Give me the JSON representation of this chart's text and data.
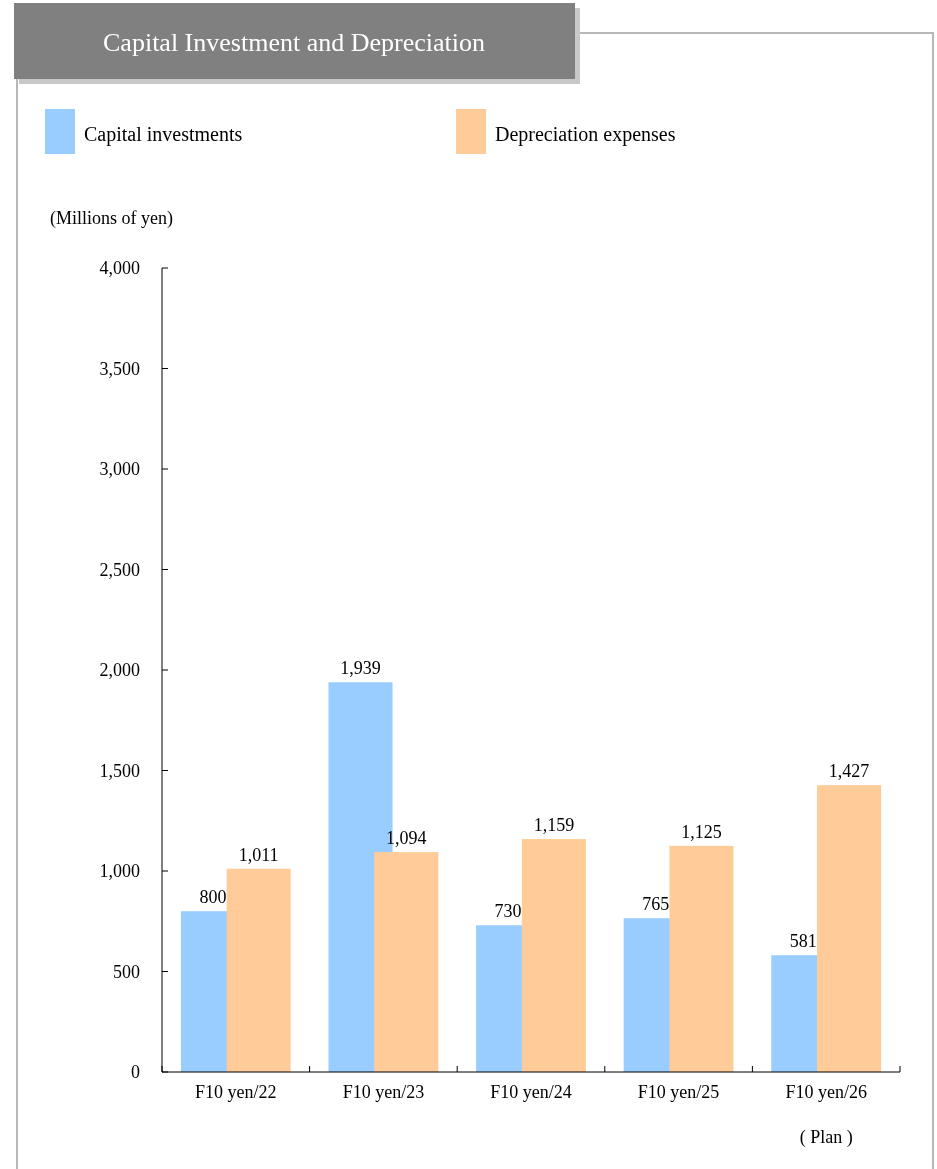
{
  "chart_data": {
    "type": "bar",
    "title": "Capital Investment and Depreciation",
    "ylabel": "(Millions of yen)",
    "categories": [
      "F10 yen/22",
      "F10 yen/23",
      "F10 yen/24",
      "F10 yen/25",
      "F10 yen/26"
    ],
    "series": [
      {
        "name": "Capital investments",
        "color": "#99ccff",
        "values": [
          800,
          1939,
          730,
          765,
          581
        ],
        "value_labels": [
          "800",
          "1,939",
          "730",
          "765",
          "581"
        ]
      },
      {
        "name": "Depreciation expenses",
        "color": "#ffcc99",
        "values": [
          1011,
          1094,
          1159,
          1125,
          1427
        ],
        "value_labels": [
          "1,011",
          "1,094",
          "1,159",
          "1,125",
          "1,427"
        ]
      }
    ],
    "ylim": [
      0,
      4000
    ],
    "yticks": [
      0,
      500,
      {
        "value": 1000,
        "label": "1,000"
      },
      {
        "value": 1500,
        "label": "1,500"
      },
      {
        "value": 2000,
        "label": "2,000"
      },
      {
        "value": 2500,
        "label": "2,500"
      },
      {
        "value": 3000,
        "label": "3,000"
      },
      {
        "value": 3500,
        "label": "3,500"
      },
      {
        "value": 4000,
        "label": "4,000"
      }
    ],
    "legend": "top",
    "annotations": [
      "( Plan )"
    ]
  }
}
